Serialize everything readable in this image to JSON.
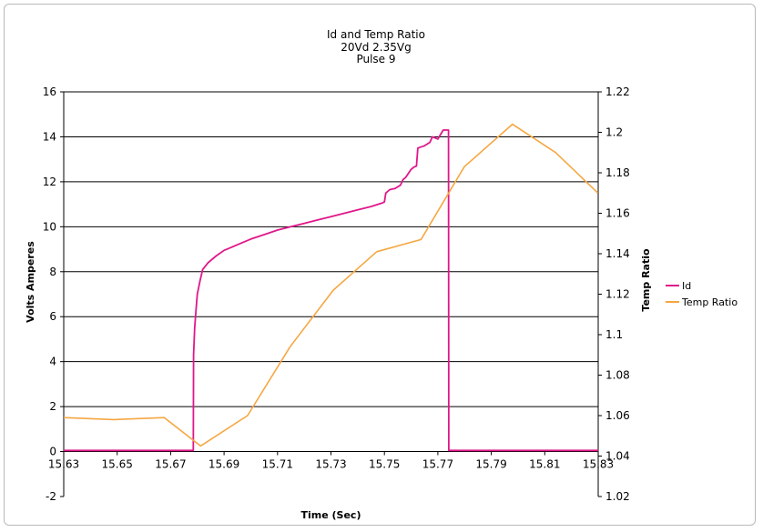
{
  "chart_data": {
    "type": "line",
    "title": "Id and Temp Ratio",
    "subtitle_lines": [
      "20Vd 2.35Vg",
      "Pulse 9"
    ],
    "xlabel": "Time (Sec)",
    "ylabel_left": "Volts Amperes",
    "ylabel_right": "Temp Ratio",
    "xlim": [
      15.63,
      15.83
    ],
    "ylim_left": [
      -2,
      16
    ],
    "ylim_right": [
      1.02,
      1.22
    ],
    "x_ticks": [
      "15.63",
      "15.65",
      "15.67",
      "15.69",
      "15.71",
      "15.73",
      "15.75",
      "15.77",
      "15.79",
      "15.81",
      "15.83"
    ],
    "y_ticks_left": [
      "-2",
      "0",
      "2",
      "4",
      "6",
      "8",
      "10",
      "12",
      "14",
      "16"
    ],
    "y_ticks_right": [
      "1.02",
      "1.04",
      "1.06",
      "1.08",
      "1.1",
      "1.12",
      "1.14",
      "1.16",
      "1.18",
      "1.2",
      "1.22"
    ],
    "grid": "horizontal",
    "legend_position": "right",
    "series": [
      {
        "name": "Id",
        "axis": "left",
        "color": "#e0178a",
        "points": [
          [
            15.63,
            0.05
          ],
          [
            15.6785,
            0.05
          ],
          [
            15.6786,
            4.3
          ],
          [
            15.679,
            5.5
          ],
          [
            15.6795,
            6.3
          ],
          [
            15.68,
            7.0
          ],
          [
            15.681,
            7.6
          ],
          [
            15.682,
            8.1
          ],
          [
            15.684,
            8.4
          ],
          [
            15.687,
            8.7
          ],
          [
            15.69,
            8.95
          ],
          [
            15.695,
            9.2
          ],
          [
            15.7,
            9.45
          ],
          [
            15.705,
            9.65
          ],
          [
            15.71,
            9.85
          ],
          [
            15.715,
            10.0
          ],
          [
            15.72,
            10.15
          ],
          [
            15.725,
            10.3
          ],
          [
            15.73,
            10.45
          ],
          [
            15.735,
            10.6
          ],
          [
            15.74,
            10.75
          ],
          [
            15.745,
            10.9
          ],
          [
            15.749,
            11.05
          ],
          [
            15.75,
            11.1
          ],
          [
            15.7505,
            11.5
          ],
          [
            15.752,
            11.65
          ],
          [
            15.754,
            11.7
          ],
          [
            15.756,
            11.85
          ],
          [
            15.757,
            12.1
          ],
          [
            15.758,
            12.2
          ],
          [
            15.76,
            12.55
          ],
          [
            15.761,
            12.65
          ],
          [
            15.762,
            12.7
          ],
          [
            15.7625,
            13.5
          ],
          [
            15.765,
            13.6
          ],
          [
            15.767,
            13.75
          ],
          [
            15.768,
            14.0
          ],
          [
            15.77,
            13.9
          ],
          [
            15.771,
            14.1
          ],
          [
            15.772,
            14.3
          ],
          [
            15.774,
            14.3
          ],
          [
            15.7741,
            0.05
          ],
          [
            15.83,
            0.05
          ]
        ]
      },
      {
        "name": "Temp Ratio",
        "axis": "right",
        "color": "#f5a742",
        "points": [
          [
            15.63,
            1.059
          ],
          [
            15.6488,
            1.058
          ],
          [
            15.6676,
            1.059
          ],
          [
            15.6812,
            1.045
          ],
          [
            15.6988,
            1.06
          ],
          [
            15.7147,
            1.094
          ],
          [
            15.7309,
            1.122
          ],
          [
            15.7471,
            1.141
          ],
          [
            15.7637,
            1.147
          ],
          [
            15.7799,
            1.183
          ],
          [
            15.7979,
            1.204
          ],
          [
            15.8141,
            1.19
          ],
          [
            15.8299,
            1.17
          ]
        ]
      }
    ]
  }
}
